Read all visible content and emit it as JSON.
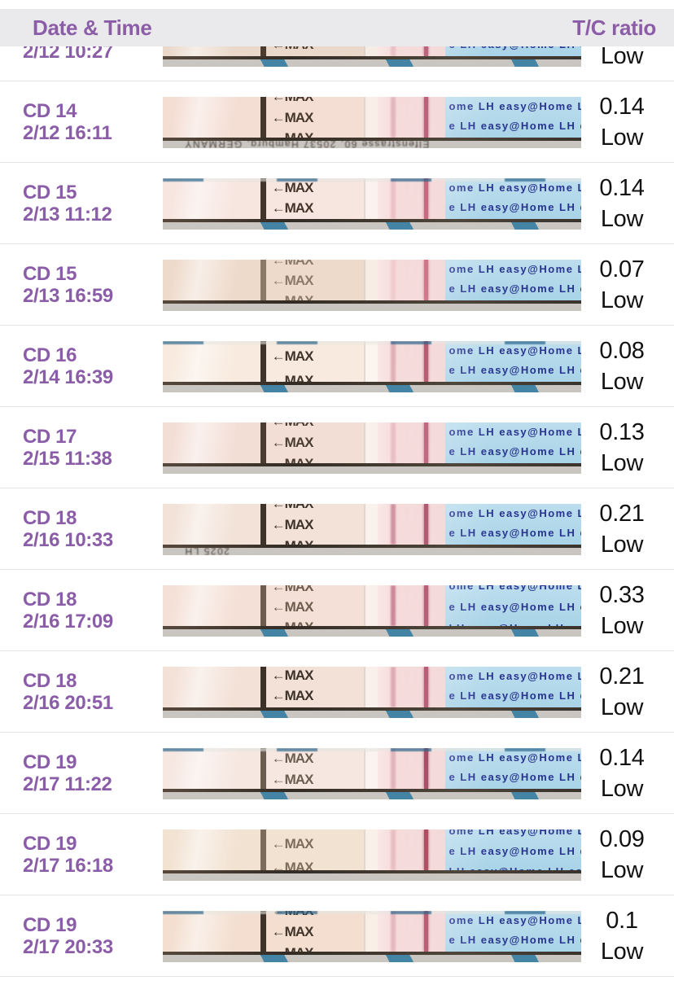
{
  "header": {
    "date_col": "Date & Time",
    "ratio_col": "T/C ratio"
  },
  "colors": {
    "accent_purple": "#8c5da7",
    "header_bg": "#eae9eb",
    "divider": "#e4e3e6",
    "value_text": "#121212",
    "handle_blue": "#aed5e8",
    "handle_text_blue": "#27338e"
  },
  "strip_text": {
    "arrow": "←",
    "max": "MAX",
    "handle_rows": [
      "ome LH  easy@Home  LH  easy@",
      "e  LH  easy@Home  LH  easy@H",
      "LH  easy@Home  LH  easy@Ho"
    ]
  },
  "rows": [
    {
      "cd": "",
      "datetime": "2/12 10:27",
      "ratio": "",
      "status": "Low",
      "strip": {
        "body": "#ead9cb",
        "max_color": "#4a3b2e",
        "ctrl_color": "#b2536e",
        "test_op": 0.2,
        "max_offsets": [
          4,
          29
        ],
        "handle_rows": [
          5,
          29
        ],
        "above": "none",
        "tape": true,
        "smudge_text": ""
      }
    },
    {
      "cd": "CD 14",
      "datetime": "2/12 16:11",
      "ratio": "0.14",
      "status": "Low",
      "strip": {
        "body": "#f4ddd3",
        "max_color": "#45372b",
        "ctrl_color": "#b2536e",
        "test_op": 0.28,
        "max_offsets": [
          -7,
          19,
          44
        ],
        "handle_rows": [
          5,
          29
        ],
        "above": "none",
        "tape": false,
        "smudge_text": "Elfenstrasse 60, 20537 Hamburg, GERMANY"
      }
    },
    {
      "cd": "CD 15",
      "datetime": "2/13 11:12",
      "ratio": "0.14",
      "status": "Low",
      "strip": {
        "body": "#f7e5df",
        "max_color": "#43352a",
        "ctrl_color": "#c05a72",
        "test_op": 0.2,
        "max_offsets": [
          5,
          30
        ],
        "handle_rows": [
          5,
          29
        ],
        "above": "tape",
        "tape": true,
        "smudge_text": ""
      }
    },
    {
      "cd": "CD 15",
      "datetime": "2/13 16:59",
      "ratio": "0.07",
      "status": "Low",
      "strip": {
        "body": "#eedacb",
        "max_color": "#8a7a68",
        "ctrl_color": "#c86a7e",
        "test_op": 0.14,
        "max_offsets": [
          -6,
          19,
          44
        ],
        "handle_rows": [
          5,
          29
        ],
        "above": "none",
        "tape": false,
        "smudge_text": ""
      }
    },
    {
      "cd": "CD 16",
      "datetime": "2/14 16:39",
      "ratio": "0.08",
      "status": "Low",
      "strip": {
        "body": "#f8eade",
        "max_color": "#3f332a",
        "ctrl_color": "#ae4c62",
        "test_op": 0.3,
        "max_offsets": [
          12,
          42
        ],
        "handle_rows": [
          5,
          29
        ],
        "above": "tape",
        "tape": true,
        "smudge_text": ""
      }
    },
    {
      "cd": "CD 17",
      "datetime": "2/15 11:38",
      "ratio": "0.13",
      "status": "Low",
      "strip": {
        "body": "#f3ded6",
        "max_color": "#4a3c30",
        "ctrl_color": "#b75a74",
        "test_op": 0.22,
        "max_offsets": [
          -8,
          18,
          44
        ],
        "handle_rows": [
          5,
          29
        ],
        "above": "none",
        "tape": false,
        "smudge_text": ""
      }
    },
    {
      "cd": "CD 18",
      "datetime": "2/16 10:33",
      "ratio": "0.21",
      "status": "Low",
      "strip": {
        "body": "#f2e2d7",
        "max_color": "#3e332a",
        "ctrl_color": "#a84a66",
        "test_op": 0.5,
        "max_offsets": [
          -7,
          19,
          45
        ],
        "handle_rows": [
          5,
          29
        ],
        "above": "none",
        "tape": false,
        "smudge_text": "2025 LH"
      }
    },
    {
      "cd": "CD 18",
      "datetime": "2/16 17:09",
      "ratio": "0.33",
      "status": "Low",
      "strip": {
        "body": "#f4e0d6",
        "max_color": "#6d5d4e",
        "ctrl_color": "#ad4f6a",
        "test_op": 0.6,
        "max_offsets": [
          -5,
          20,
          45
        ],
        "handle_rows": [
          -6,
          20,
          46
        ],
        "above": "none",
        "tape": true,
        "smudge_text": ""
      }
    },
    {
      "cd": "CD 18",
      "datetime": "2/16 20:51",
      "ratio": "0.21",
      "status": "Low",
      "strip": {
        "body": "#f3e1d7",
        "max_color": "#3c3129",
        "ctrl_color": "#b04f6a",
        "test_op": 0.35,
        "max_offsets": [
          4,
          29
        ],
        "handle_rows": [
          5,
          29
        ],
        "above": "none",
        "tape": true,
        "smudge_text": ""
      }
    },
    {
      "cd": "CD 19",
      "datetime": "2/17 11:22",
      "ratio": "0.14",
      "status": "Low",
      "strip": {
        "body": "#f6e7e1",
        "max_color": "#6b5d50",
        "ctrl_color": "#9e3d58",
        "test_op": 0.25,
        "max_offsets": [
          6,
          32
        ],
        "handle_rows": [
          5,
          29
        ],
        "above": "tape",
        "tape": true,
        "smudge_text": ""
      }
    },
    {
      "cd": "CD 19",
      "datetime": "2/17 16:18",
      "ratio": "0.09",
      "status": "Low",
      "strip": {
        "body": "#f2e2d2",
        "max_color": "#7d6c5b",
        "ctrl_color": "#a63d52",
        "test_op": 0.18,
        "max_offsets": [
          11,
          40
        ],
        "handle_rows": [
          -5,
          20,
          45
        ],
        "above": "none",
        "tape": false,
        "smudge_text": ""
      }
    },
    {
      "cd": "CD 19",
      "datetime": "2/17 20:33",
      "ratio": "0.1",
      "status": "Low",
      "strip": {
        "body": "#f3decf",
        "max_color": "#40342a",
        "ctrl_color": "#b14e66",
        "test_op": 0.25,
        "max_offsets": [
          -7,
          19,
          45
        ],
        "handle_rows": [
          5,
          29
        ],
        "above": "tape",
        "tape": true,
        "smudge_text": ""
      }
    }
  ]
}
